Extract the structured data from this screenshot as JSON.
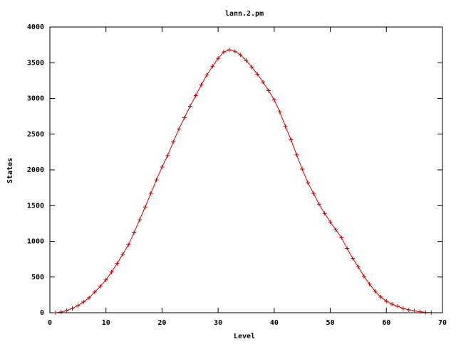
{
  "chart_data": {
    "type": "line",
    "title": "lann.2.pm",
    "x_label": "Level",
    "y_label": "States",
    "x": [
      1,
      2,
      3,
      4,
      5,
      6,
      7,
      8,
      9,
      10,
      11,
      12,
      13,
      14,
      15,
      16,
      17,
      18,
      19,
      20,
      21,
      22,
      23,
      24,
      25,
      26,
      27,
      28,
      29,
      30,
      31,
      32,
      33,
      34,
      35,
      36,
      37,
      38,
      39,
      40,
      41,
      42,
      43,
      44,
      45,
      46,
      47,
      48,
      49,
      50,
      51,
      52,
      53,
      54,
      55,
      56,
      57,
      58,
      59,
      60,
      61,
      62,
      63,
      64,
      65,
      66,
      67,
      68
    ],
    "series": [
      {
        "color": "#cc0000",
        "values": [
          0,
          10,
          30,
          60,
          100,
          150,
          210,
          290,
          370,
          460,
          570,
          690,
          820,
          950,
          1120,
          1300,
          1480,
          1670,
          1860,
          2040,
          2200,
          2390,
          2570,
          2730,
          2890,
          3040,
          3190,
          3330,
          3450,
          3560,
          3650,
          3680,
          3660,
          3610,
          3530,
          3440,
          3340,
          3230,
          3110,
          2980,
          2810,
          2610,
          2420,
          2210,
          2010,
          1820,
          1670,
          1520,
          1390,
          1270,
          1160,
          1050,
          900,
          760,
          640,
          510,
          400,
          300,
          220,
          160,
          120,
          90,
          60,
          40,
          25,
          15,
          5,
          2
        ]
      }
    ],
    "xlim": [
      0,
      70
    ],
    "xticks": [
      0,
      10,
      20,
      30,
      40,
      50,
      60,
      70
    ],
    "ylim": [
      0,
      4000
    ],
    "yticks": [
      0,
      500,
      1000,
      1500,
      2000,
      2500,
      3000,
      3500,
      4000
    ]
  }
}
